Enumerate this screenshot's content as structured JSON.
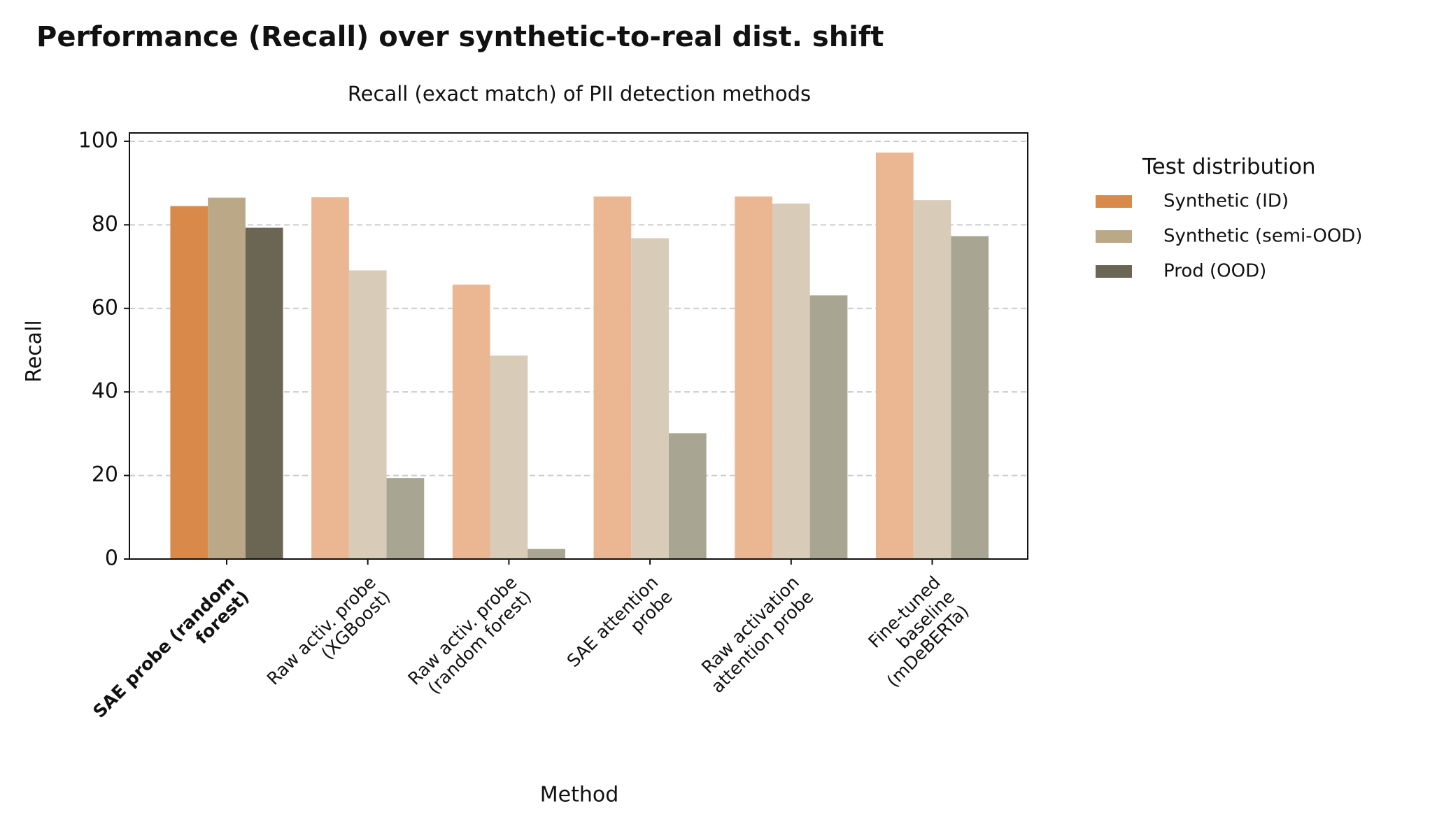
{
  "chart_data": {
    "type": "bar",
    "title": "Performance (Recall) over synthetic-to-real dist. shift",
    "subtitle": "Recall (exact match) of PII detection methods",
    "x_label": "Method",
    "y_label": "Recall",
    "categories": [
      "SAE probe (random\nforest)",
      "Raw activ. probe\n(XGBoost)",
      "Raw activ. probe\n(random forest)",
      "SAE attention\nprobe",
      "Raw activation\nattention probe",
      "Fine-tuned\nbaseline\n(mDeBERTa)"
    ],
    "highlight_category": 0,
    "series": [
      {
        "name": "Synthetic (ID)",
        "color": "#d98a4a",
        "faded_color": "#ebb793",
        "values": [
          84.5,
          86.6,
          65.7,
          86.8,
          86.8,
          97.3
        ]
      },
      {
        "name": "Synthetic (semi-OOD)",
        "color": "#bba886",
        "faded_color": "#d8cbb7",
        "values": [
          86.5,
          69.1,
          48.7,
          76.8,
          85.1,
          85.9
        ]
      },
      {
        "name": "Prod (OOD)",
        "color": "#6b6653",
        "faded_color": "#a8a593",
        "values": [
          79.3,
          19.4,
          2.4,
          30.1,
          63.1,
          77.3
        ]
      }
    ],
    "legend_title": "Test distribution",
    "legend": "outside-right",
    "ylim": [
      0,
      102
    ],
    "yticks": [
      0,
      20,
      40,
      60,
      80,
      100
    ],
    "grid": true
  }
}
